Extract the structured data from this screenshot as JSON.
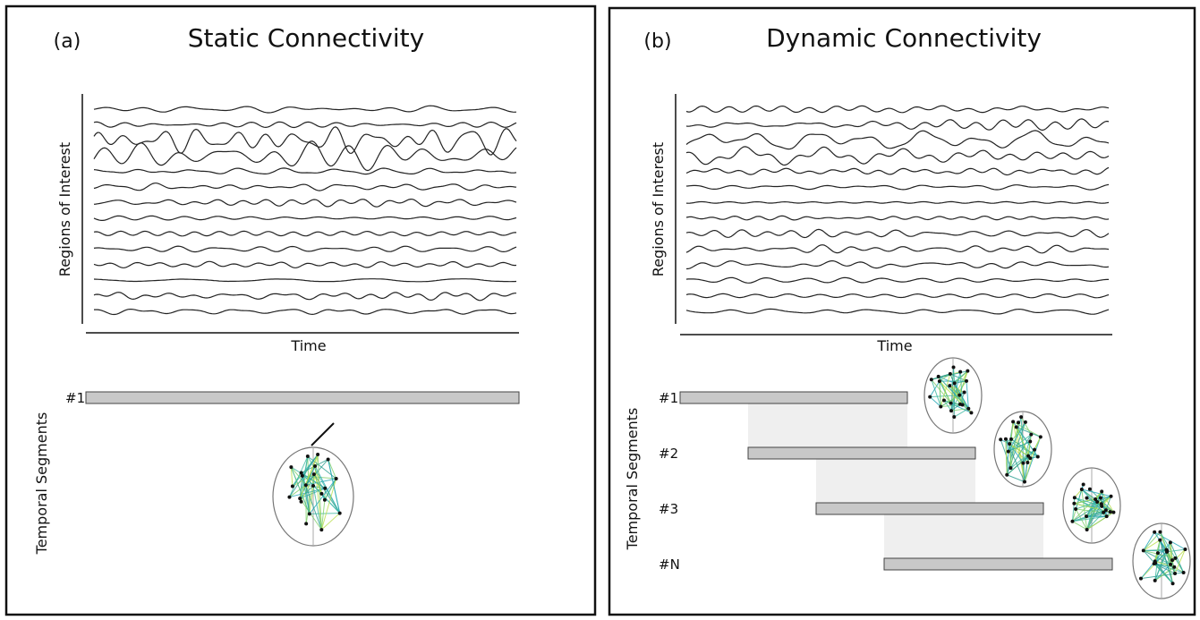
{
  "panels": [
    {
      "label": "(a)",
      "title": "Static Connectivity",
      "y_axis_label": "Regions of Interest",
      "x_axis_label": "Time",
      "segments_label": "Temporal Segments",
      "segments": [
        "#1"
      ]
    },
    {
      "label": "(b)",
      "title": "Dynamic Connectivity",
      "y_axis_label": "Regions of Interest",
      "x_axis_label": "Time",
      "segments_label": "Temporal Segments",
      "segments": [
        "#1",
        "#2",
        "#3",
        "#N"
      ]
    }
  ]
}
